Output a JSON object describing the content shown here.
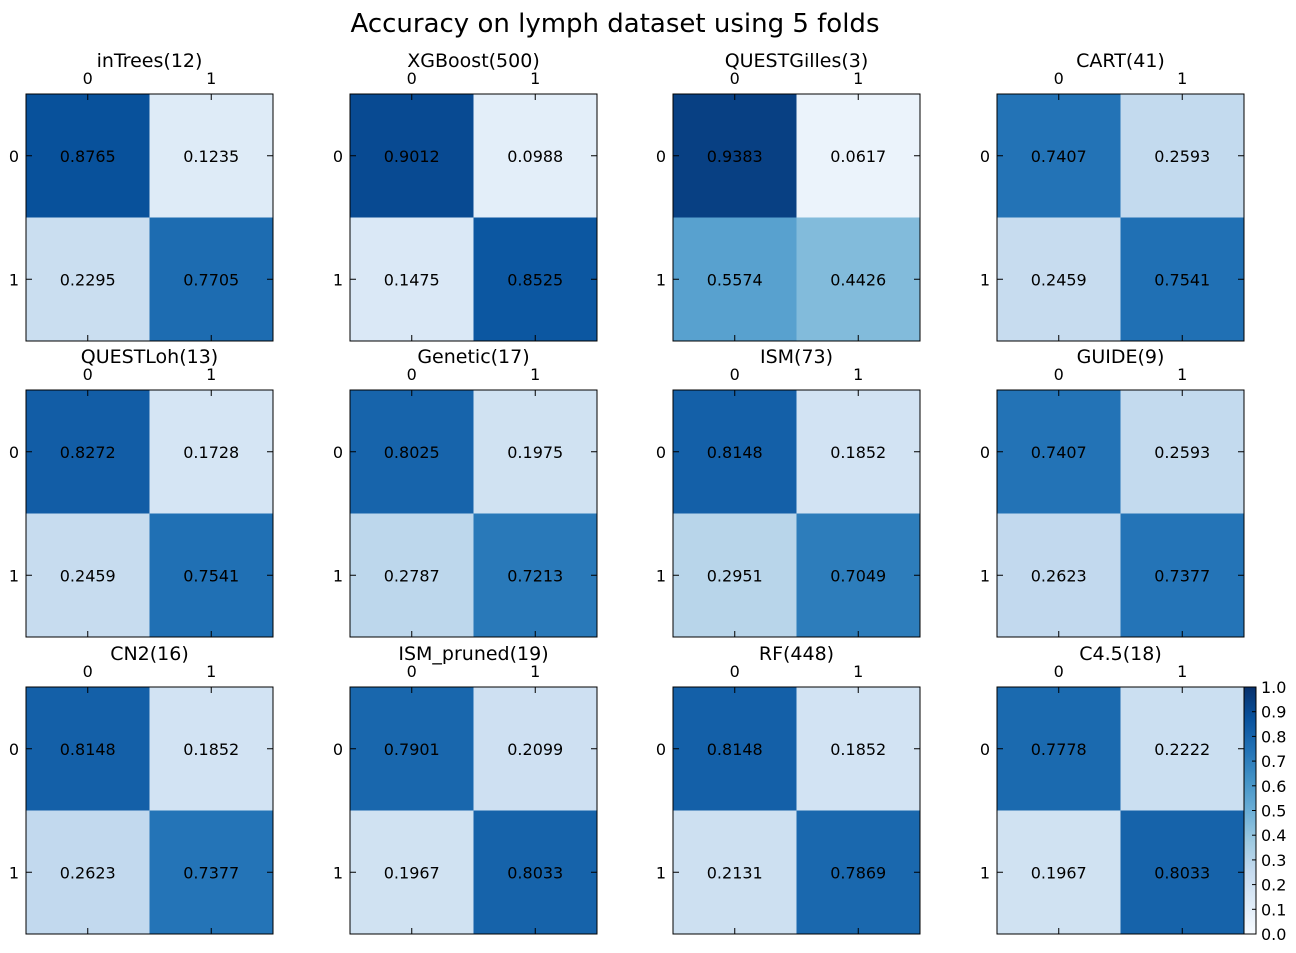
{
  "title": "Accuracy on lymph dataset using 5 folds",
  "colormap": "Blues",
  "chart_data": {
    "type": "heatmap",
    "suptitle": "Accuracy on lymph dataset using 5 folds",
    "row_labels": [
      "0",
      "1"
    ],
    "col_labels": [
      "0",
      "1"
    ],
    "vlim": [
      0.0,
      1.0
    ],
    "colorbar_ticks": [
      "0.0",
      "0.1",
      "0.2",
      "0.3",
      "0.4",
      "0.5",
      "0.6",
      "0.7",
      "0.8",
      "0.9",
      "1.0"
    ],
    "matrices": [
      {
        "title": "inTrees(12)",
        "values": [
          [
            0.8765,
            0.1235
          ],
          [
            0.2295,
            0.7705
          ]
        ],
        "labels": [
          [
            "0.8765",
            "0.1235"
          ],
          [
            "0.2295",
            "0.7705"
          ]
        ]
      },
      {
        "title": "XGBoost(500)",
        "values": [
          [
            0.9012,
            0.0988
          ],
          [
            0.1475,
            0.8525
          ]
        ],
        "labels": [
          [
            "0.9012",
            "0.0988"
          ],
          [
            "0.1475",
            "0.8525"
          ]
        ]
      },
      {
        "title": "QUESTGilles(3)",
        "values": [
          [
            0.9383,
            0.0617
          ],
          [
            0.5574,
            0.4426
          ]
        ],
        "labels": [
          [
            "0.9383",
            "0.0617"
          ],
          [
            "0.5574",
            "0.4426"
          ]
        ]
      },
      {
        "title": "CART(41)",
        "values": [
          [
            0.7407,
            0.2593
          ],
          [
            0.2459,
            0.7541
          ]
        ],
        "labels": [
          [
            "0.7407",
            "0.2593"
          ],
          [
            "0.2459",
            "0.7541"
          ]
        ]
      },
      {
        "title": "QUESTLoh(13)",
        "values": [
          [
            0.8272,
            0.1728
          ],
          [
            0.2459,
            0.7541
          ]
        ],
        "labels": [
          [
            "0.8272",
            "0.1728"
          ],
          [
            "0.2459",
            "0.7541"
          ]
        ]
      },
      {
        "title": "Genetic(17)",
        "values": [
          [
            0.8025,
            0.1975
          ],
          [
            0.2787,
            0.7213
          ]
        ],
        "labels": [
          [
            "0.8025",
            "0.1975"
          ],
          [
            "0.2787",
            "0.7213"
          ]
        ]
      },
      {
        "title": "ISM(73)",
        "values": [
          [
            0.8148,
            0.1852
          ],
          [
            0.2951,
            0.7049
          ]
        ],
        "labels": [
          [
            "0.8148",
            "0.1852"
          ],
          [
            "0.2951",
            "0.7049"
          ]
        ]
      },
      {
        "title": "GUIDE(9)",
        "values": [
          [
            0.7407,
            0.2593
          ],
          [
            0.2623,
            0.7377
          ]
        ],
        "labels": [
          [
            "0.7407",
            "0.2593"
          ],
          [
            "0.2623",
            "0.7377"
          ]
        ]
      },
      {
        "title": "CN2(16)",
        "values": [
          [
            0.8148,
            0.1852
          ],
          [
            0.2623,
            0.7377
          ]
        ],
        "labels": [
          [
            "0.8148",
            "0.1852"
          ],
          [
            "0.2623",
            "0.7377"
          ]
        ]
      },
      {
        "title": "ISM_pruned(19)",
        "values": [
          [
            0.7901,
            0.2099
          ],
          [
            0.1967,
            0.8033
          ]
        ],
        "labels": [
          [
            "0.7901",
            "0.2099"
          ],
          [
            "0.1967",
            "0.8033"
          ]
        ]
      },
      {
        "title": "RF(448)",
        "values": [
          [
            0.8148,
            0.1852
          ],
          [
            0.2131,
            0.7869
          ]
        ],
        "labels": [
          [
            "0.8148",
            "0.1852"
          ],
          [
            "0.2131",
            "0.7869"
          ]
        ]
      },
      {
        "title": "C4.5(18)",
        "values": [
          [
            0.7778,
            0.2222
          ],
          [
            0.1967,
            0.8033
          ]
        ],
        "labels": [
          [
            "0.7778",
            "0.2222"
          ],
          [
            "0.1967",
            "0.8033"
          ]
        ]
      }
    ]
  }
}
